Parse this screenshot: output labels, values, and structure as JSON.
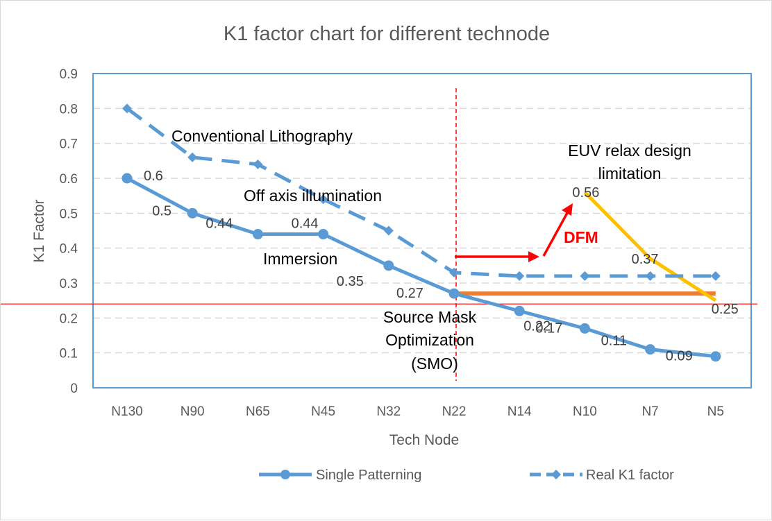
{
  "chart_data": {
    "type": "line",
    "title": "K1 factor chart for different technode",
    "xlabel": "Tech Node",
    "ylabel": "K1 Factor",
    "categories": [
      "N130",
      "N90",
      "N65",
      "N45",
      "N32",
      "N22",
      "N14",
      "N10",
      "N7",
      "N5"
    ],
    "ylim": [
      0,
      0.9
    ],
    "yticks": [
      "0",
      "0.1",
      "0.2",
      "0.3",
      "0.4",
      "0.5",
      "0.6",
      "0.7",
      "0.8",
      "0.9"
    ],
    "grid": true,
    "legend_position": "bottom",
    "series": [
      {
        "name": "Single Patterning",
        "style": "solid",
        "marker": "circle",
        "color": "#5b9bd5",
        "values": [
          0.6,
          0.5,
          0.44,
          0.44,
          0.35,
          0.27,
          0.22,
          0.17,
          0.11,
          0.09
        ],
        "labels": [
          "0.6",
          "0.5",
          "0.44",
          "0.44",
          "0.35",
          "0.27",
          "0.22",
          "0.17",
          "0.11",
          "0.09"
        ]
      },
      {
        "name": "Real K1 factor",
        "style": "dashed",
        "marker": "diamond",
        "color": "#5b9bd5",
        "values": [
          0.8,
          0.66,
          0.64,
          0.54,
          0.45,
          0.33,
          0.32,
          0.32,
          0.32,
          0.32
        ]
      }
    ],
    "overlays": {
      "dfm_line": {
        "color": "#ed7d31",
        "from_index": 5,
        "to_index": 9,
        "value": 0.27
      },
      "euv_line": {
        "color": "#ffc000",
        "points": [
          [
            7,
            0.56
          ],
          [
            8,
            0.37
          ],
          [
            9,
            0.25
          ]
        ],
        "labels": [
          "0.56",
          "0.37",
          "0.25"
        ]
      },
      "threshold_line": {
        "color": "#ff0000",
        "value": 0.24
      },
      "divider": {
        "color": "#ff0000",
        "at_index": 5
      },
      "arrow_color": "#ff0000"
    },
    "annotations": {
      "conventional": "Conventional Lithography",
      "off_axis": "Off axis illumination",
      "immersion": "Immersion",
      "smo_line1": "Source Mask",
      "smo_line2": "Optimization",
      "smo_line3": "(SMO)",
      "euv_line1": "EUV relax design",
      "euv_line2": "limitation",
      "dfm": "DFM"
    }
  }
}
